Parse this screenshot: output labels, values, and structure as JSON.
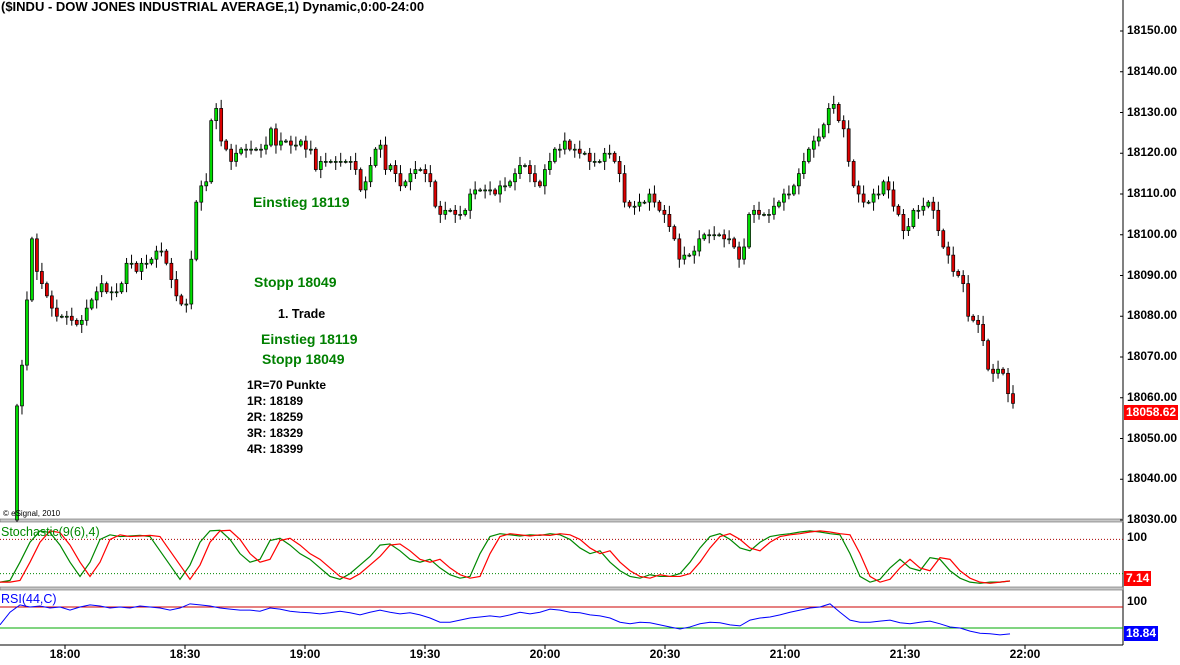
{
  "header": {
    "title": "($INDU - DOW JONES INDUSTRIAL AVERAGE,1) Dynamic,0:00-24:00"
  },
  "copyright": "© eSignal, 2010",
  "annotations": {
    "einstieg_1": "Einstieg 18119",
    "stopp_1": "Stopp 18049",
    "trade": "1. Trade",
    "einstieg_2": "Einstieg 18119",
    "stopp_2": "Stopp 18049",
    "r_lines": [
      "1R=70 Punkte",
      "1R: 18189",
      "2R: 18259",
      "3R: 18329",
      "4R: 18399"
    ]
  },
  "colors": {
    "up": "#00dd00",
    "down": "#dd0000",
    "stoch_k": "#008800",
    "stoch_d": "#ff0000",
    "rsi": "#0000ff",
    "last_price_tag": "#ff0000",
    "stoch_tag": "#ff0000",
    "rsi_tag": "#0000ff"
  },
  "chart_data": [
    {
      "type": "candlestick",
      "title": "($INDU - DOW JONES INDUSTRIAL AVERAGE,1) Dynamic,0:00-24:00",
      "y_ticks": [
        "18150.00",
        "18140.00",
        "18130.00",
        "18120.00",
        "18110.00",
        "18100.00",
        "18090.00",
        "18080.00",
        "18070.00",
        "18060.00",
        "18050.00",
        "18040.00",
        "18030.00"
      ],
      "ylim": [
        18030,
        18150
      ],
      "x_ticks": [
        "18:00",
        "18:30",
        "19:00",
        "19:30",
        "20:00",
        "20:30",
        "21:00",
        "21:30",
        "22:00"
      ],
      "last_price": "18058.62",
      "first_open": 18030,
      "closes": [
        18058,
        18068,
        18084,
        18099,
        18091,
        18088,
        18085,
        18082,
        18080,
        18080,
        18080,
        18079,
        18078,
        18079,
        18082,
        18084,
        18086,
        18088,
        18086,
        18086,
        18086,
        18088,
        18093,
        18093,
        18091,
        18093,
        18093,
        18094,
        18096,
        18096,
        18093,
        18089,
        18085,
        18083,
        18083,
        18094,
        18108,
        18112,
        18113,
        18128,
        18131,
        18123,
        18121,
        18118,
        18120,
        18121,
        18121,
        18121,
        18121,
        18121,
        18122,
        18126,
        18122,
        18123,
        18123,
        18122,
        18122,
        18123,
        18121,
        18121,
        18116,
        18118,
        18118,
        18118,
        18118,
        18118,
        18118,
        18118,
        18116,
        18111,
        18113,
        18117,
        18121,
        18122,
        18116,
        18117,
        18115,
        18112,
        18113,
        18115,
        18116,
        18116,
        18115,
        18113,
        18107,
        18105,
        18106,
        18106,
        18105,
        18105,
        18106,
        18110,
        18111,
        18111,
        18111,
        18111,
        18110,
        18112,
        18112,
        18113,
        18115,
        18117,
        18117,
        18115,
        18113,
        18112,
        18116,
        18118,
        18121,
        18121,
        18123,
        18121,
        18121,
        18120,
        18120,
        18118,
        18118,
        18118,
        18120,
        18120,
        18118,
        18115,
        18108,
        18107,
        18107,
        18108,
        18108,
        18110,
        18108,
        18106,
        18105,
        18102,
        18099,
        18094,
        18095,
        18095,
        18096,
        18099,
        18100,
        18100,
        18100,
        18100,
        18099,
        18099,
        18097,
        18094,
        18097,
        18105,
        18106,
        18105,
        18105,
        18105,
        18107,
        18108,
        18110,
        18110,
        18112,
        18115,
        18118,
        18121,
        18123,
        18124,
        18127,
        18131,
        18132,
        18128,
        18126,
        18118,
        18112,
        18110,
        18108,
        18108,
        18110,
        18110,
        18113,
        18111,
        18107,
        18105,
        18101,
        18102,
        18106,
        18106,
        18107,
        18108,
        18106,
        18101,
        18097,
        18095,
        18091,
        18090,
        18088,
        18080,
        18079,
        18078,
        18074,
        18067,
        18066,
        18067,
        18066,
        18061,
        18058.62
      ]
    },
    {
      "type": "line",
      "title": "Stochastic(9(6),4)",
      "y_label_top": "100",
      "last_value": "7.14",
      "ylim": [
        0,
        100
      ],
      "ref_lines": [
        80,
        20
      ],
      "series": [
        {
          "values": [
            5,
            8,
            40,
            75,
            95,
            92,
            70,
            40,
            15,
            40,
            80,
            88,
            85,
            86,
            87,
            85,
            60,
            35,
            10,
            35,
            75,
            95,
            96,
            80,
            55,
            40,
            45,
            78,
            82,
            70,
            55,
            45,
            30,
            15,
            10,
            20,
            35,
            50,
            70,
            72,
            60,
            45,
            40,
            45,
            30,
            18,
            12,
            15,
            55,
            85,
            90,
            88,
            86,
            88,
            87,
            90,
            88,
            80,
            65,
            55,
            60,
            40,
            25,
            15,
            12,
            18,
            15,
            15,
            20,
            40,
            65,
            85,
            90,
            80,
            65,
            60,
            75,
            85,
            88,
            90,
            93,
            95,
            93,
            90,
            88,
            55,
            15,
            5,
            10,
            30,
            45,
            30,
            25,
            48,
            45,
            25,
            12,
            5,
            3,
            5,
            5,
            7
          ]
        },
        {
          "values": [
            5,
            5,
            8,
            40,
            75,
            95,
            92,
            70,
            40,
            15,
            40,
            80,
            88,
            85,
            86,
            87,
            85,
            60,
            35,
            10,
            35,
            75,
            95,
            96,
            80,
            55,
            40,
            45,
            78,
            82,
            70,
            55,
            45,
            30,
            15,
            10,
            20,
            35,
            50,
            70,
            72,
            60,
            45,
            40,
            45,
            30,
            18,
            12,
            15,
            55,
            85,
            90,
            88,
            86,
            88,
            87,
            90,
            88,
            80,
            65,
            55,
            60,
            40,
            25,
            15,
            12,
            18,
            15,
            15,
            20,
            40,
            65,
            85,
            90,
            80,
            65,
            60,
            75,
            85,
            88,
            90,
            93,
            95,
            93,
            90,
            88,
            55,
            15,
            5,
            10,
            30,
            45,
            30,
            25,
            48,
            45,
            25,
            12,
            5,
            3,
            5,
            7.14
          ]
        }
      ]
    },
    {
      "type": "line",
      "title": "RSI(44,C)",
      "y_label_top": "100",
      "last_value": "18.84",
      "ylim": [
        0,
        100
      ],
      "ref_lines": [
        70,
        30
      ],
      "series": [
        {
          "values": [
            36,
            60,
            74,
            70,
            72,
            68,
            70,
            64,
            70,
            74,
            72,
            68,
            70,
            68,
            72,
            70,
            68,
            64,
            68,
            76,
            74,
            72,
            68,
            66,
            64,
            64,
            62,
            68,
            66,
            62,
            60,
            59,
            57,
            59,
            62,
            59,
            55,
            60,
            64,
            60,
            57,
            59,
            55,
            49,
            41,
            41,
            45,
            49,
            51,
            53,
            51,
            55,
            60,
            57,
            60,
            66,
            64,
            60,
            59,
            55,
            53,
            49,
            41,
            38,
            41,
            40,
            36,
            32,
            28,
            32,
            38,
            41,
            40,
            36,
            34,
            45,
            49,
            51,
            55,
            60,
            64,
            68,
            70,
            76,
            60,
            45,
            41,
            41,
            43,
            45,
            40,
            38,
            41,
            43,
            38,
            32,
            30,
            24,
            20,
            19,
            17,
            18.84
          ]
        }
      ]
    }
  ]
}
